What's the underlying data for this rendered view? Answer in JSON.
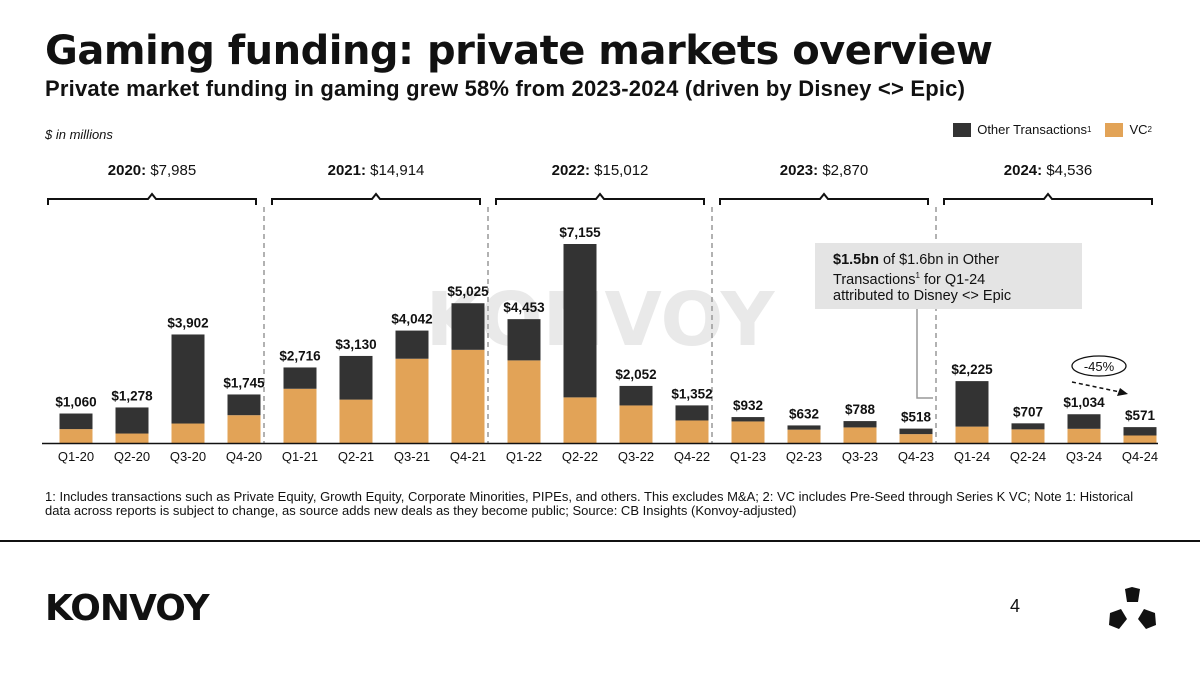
{
  "header": {
    "title": "Gaming funding: private markets overview",
    "subtitle": "Private market funding in gaming grew 58% from 2023-2024 (driven by Disney <> Epic)",
    "unit_note": "$ in millions"
  },
  "legend": {
    "other_label": "Other Transactions",
    "other_sup": "1",
    "vc_label": "VC",
    "vc_sup": "2"
  },
  "colors": {
    "other": "#333333",
    "vc": "#E2A357",
    "divider": "#999999",
    "callout_bg": "#e4e4e4"
  },
  "watermark": "KONVOY",
  "callout": {
    "bold": "$1.5bn",
    "text1": " of $1.6bn in Other",
    "text2": "Transactions",
    "sup": "1",
    "text3": " for Q1-24",
    "text4": "attributed to Disney <> Epic"
  },
  "chart_data": {
    "type": "bar",
    "stacked": true,
    "title": "Gaming funding: private markets overview",
    "ylabel": "$ in millions",
    "categories": [
      "Q1-20",
      "Q2-20",
      "Q3-20",
      "Q4-20",
      "Q1-21",
      "Q2-21",
      "Q3-21",
      "Q4-21",
      "Q1-22",
      "Q2-22",
      "Q3-22",
      "Q4-22",
      "Q1-23",
      "Q2-23",
      "Q3-23",
      "Q4-23",
      "Q1-24",
      "Q2-24",
      "Q3-24",
      "Q4-24"
    ],
    "series": [
      {
        "name": "VC",
        "values": [
          500,
          340,
          700,
          1000,
          1950,
          1560,
          3030,
          3350,
          2970,
          1640,
          1350,
          810,
          775,
          480,
          560,
          320,
          590,
          490,
          510,
          270
        ]
      },
      {
        "name": "Other Transactions",
        "values": [
          560,
          938,
          3202,
          745,
          766,
          1570,
          1012,
          1675,
          1483,
          5515,
          702,
          542,
          157,
          152,
          228,
          198,
          1635,
          217,
          524,
          301
        ]
      }
    ],
    "totals": [
      1060,
      1278,
      3902,
      1745,
      2716,
      3130,
      4042,
      5025,
      4453,
      7155,
      2052,
      1352,
      932,
      632,
      788,
      518,
      2225,
      707,
      1034,
      571
    ],
    "total_labels": [
      "$1,060",
      "$1,278",
      "$3,902",
      "$1,745",
      "$2,716",
      "$3,130",
      "$4,042",
      "$5,025",
      "$4,453",
      "$7,155",
      "$2,052",
      "$1,352",
      "$932",
      "$632",
      "$788",
      "$518",
      "$2,225",
      "$707",
      "$1,034",
      "$571"
    ],
    "ylim": [
      0,
      7200
    ],
    "years": [
      {
        "year": "2020:",
        "total": "$7,985"
      },
      {
        "year": "2021:",
        "total": "$14,914"
      },
      {
        "year": "2022:",
        "total": "$15,012"
      },
      {
        "year": "2023:",
        "total": "$2,870"
      },
      {
        "year": "2024:",
        "total": "$4,536"
      }
    ],
    "annotation": "-45%"
  },
  "footnote": "1: Includes transactions such as Private Equity, Growth Equity, Corporate Minorities, PIPEs, and others. This excludes M&A; 2: VC includes Pre-Seed through Series K VC; Note 1: Historical data across reports is subject to change, as source adds new deals as they become public; Source: CB Insights (Konvoy-adjusted)",
  "footer": {
    "brand": "KONVOY",
    "page_number": "4"
  }
}
